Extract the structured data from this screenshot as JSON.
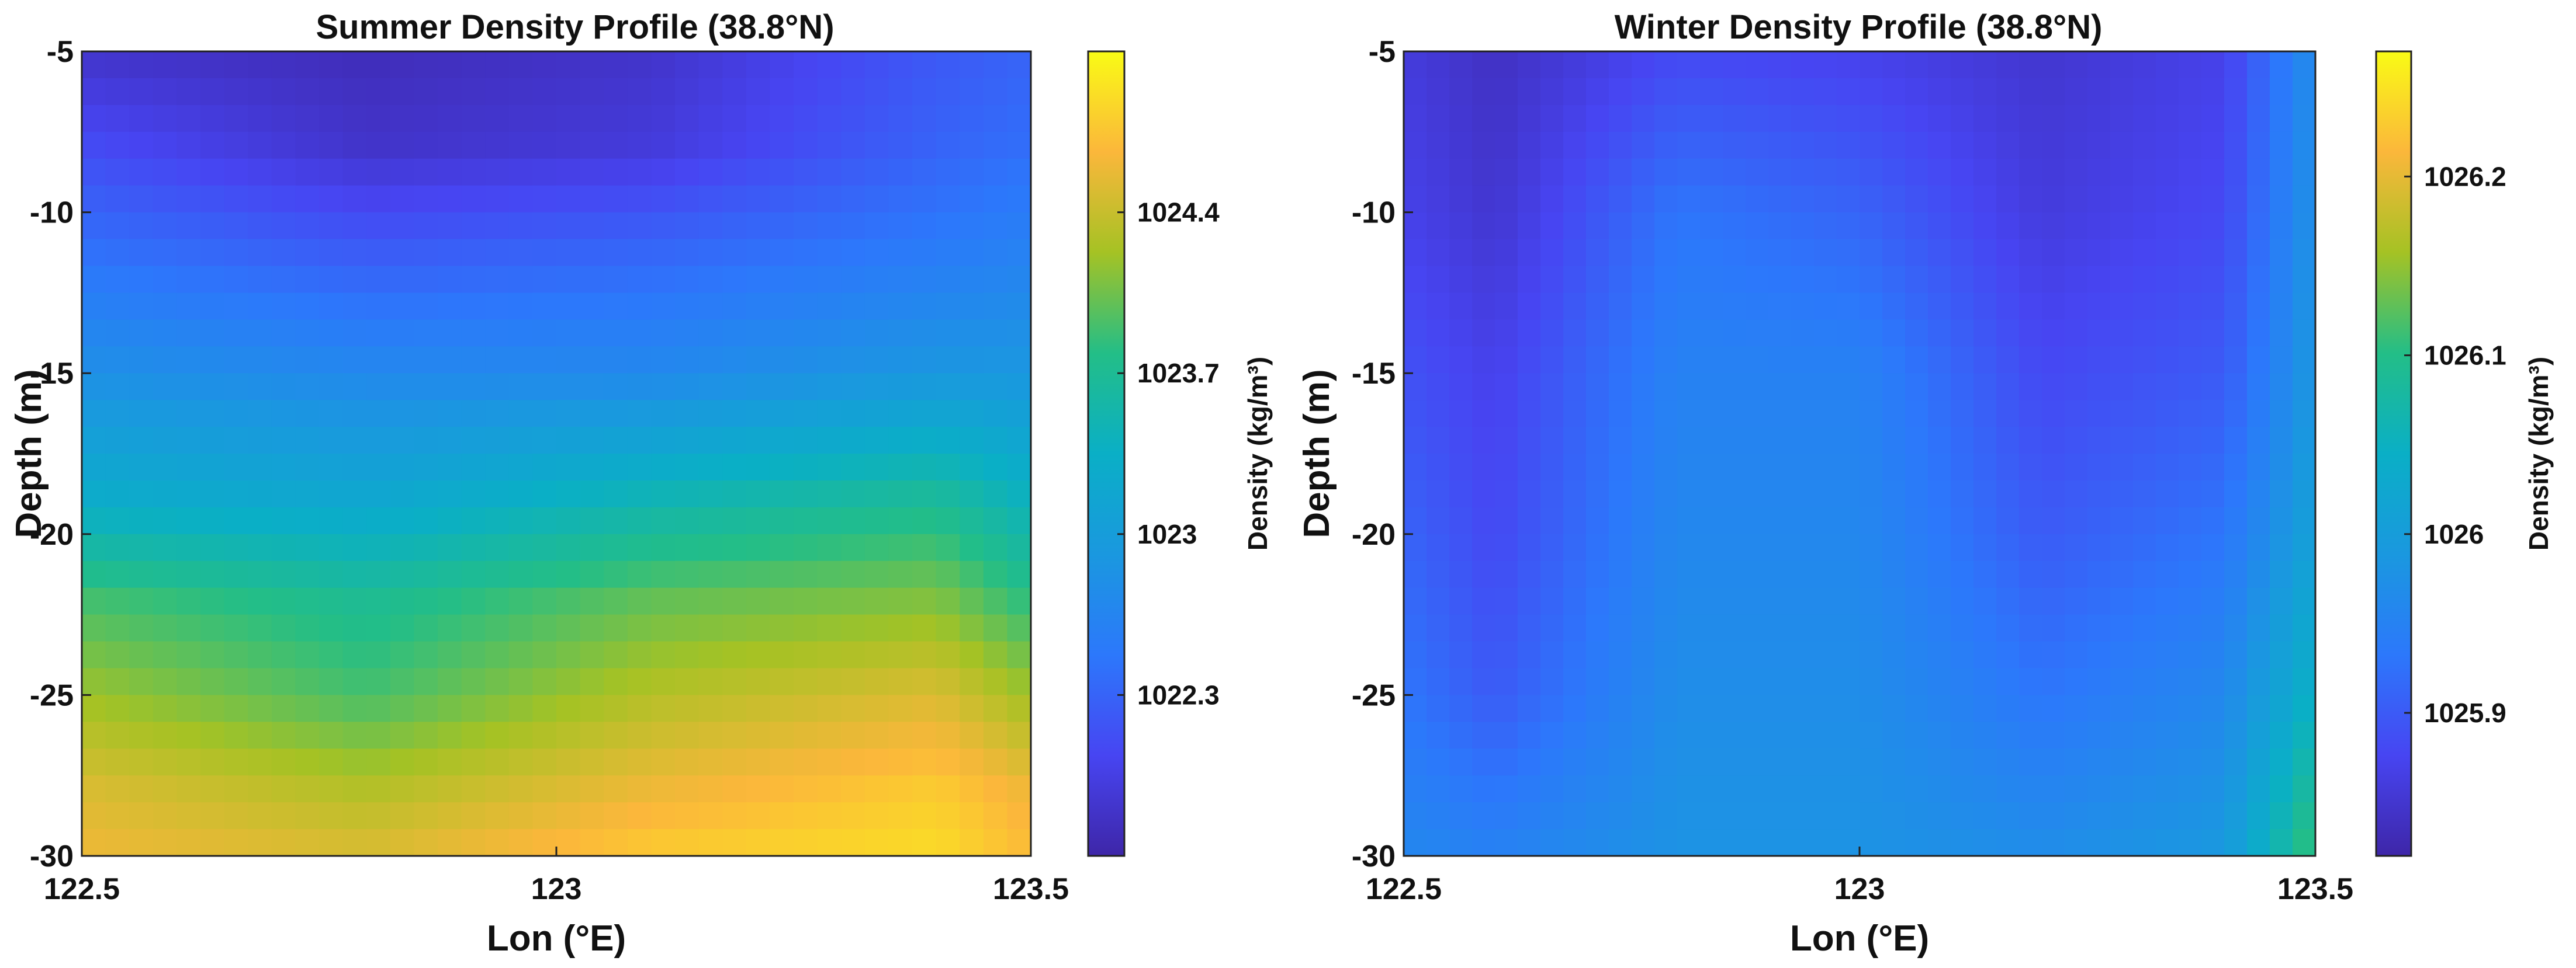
{
  "chart_data": [
    {
      "type": "heatmap",
      "title": "Summer Density Profile (38.8°N)",
      "xlabel": "Lon (°E)",
      "ylabel": "Depth (m)",
      "xlim": [
        122.5,
        123.5
      ],
      "ylim": [
        -30,
        -5
      ],
      "xticks": [
        122.5,
        123,
        123.5
      ],
      "xtick_labels": [
        "122.5",
        "123",
        "123.5"
      ],
      "yticks": [
        -5,
        -10,
        -15,
        -20,
        -25,
        -30
      ],
      "ytick_labels": [
        "-5",
        "-10",
        "-15",
        "-20",
        "-25",
        "-30"
      ],
      "colorbar": {
        "label": "Density (kg/m³)",
        "range": [
          1021.6,
          1025.1
        ],
        "ticks": [
          1022.3,
          1023,
          1023.7,
          1024.4
        ],
        "tick_labels": [
          "1022.3",
          "1023",
          "1023.7",
          "1024.4"
        ]
      },
      "x": [
        122.5,
        122.8,
        123.1,
        123.4,
        123.5
      ],
      "y": [
        -5,
        -8,
        -11,
        -15,
        -19,
        -22,
        -25,
        -28,
        -30
      ],
      "z": [
        [
          1021.8,
          1021.7,
          1021.8,
          1022.2,
          1022.3
        ],
        [
          1022.1,
          1021.8,
          1021.9,
          1022.3,
          1022.4
        ],
        [
          1022.4,
          1022.2,
          1022.3,
          1022.5,
          1022.6
        ],
        [
          1022.8,
          1022.7,
          1022.7,
          1022.9,
          1022.9
        ],
        [
          1023.3,
          1023.2,
          1023.5,
          1023.7,
          1023.4
        ],
        [
          1023.9,
          1023.7,
          1024.0,
          1024.1,
          1023.8
        ],
        [
          1024.2,
          1023.9,
          1024.3,
          1024.5,
          1024.2
        ],
        [
          1024.5,
          1024.3,
          1024.6,
          1024.8,
          1024.6
        ],
        [
          1024.6,
          1024.5,
          1024.8,
          1024.9,
          1024.7
        ]
      ]
    },
    {
      "type": "heatmap",
      "title": "Winter Density Profile (38.8°N)",
      "xlabel": "Lon (°E)",
      "ylabel": "Depth (m)",
      "xlim": [
        122.5,
        123.5
      ],
      "ylim": [
        -30,
        -5
      ],
      "xticks": [
        122.5,
        123,
        123.5
      ],
      "xtick_labels": [
        "122.5",
        "123",
        "123.5"
      ],
      "yticks": [
        -5,
        -10,
        -15,
        -20,
        -25,
        -30
      ],
      "ytick_labels": [
        "-5",
        "-10",
        "-15",
        "-20",
        "-25",
        "-30"
      ],
      "colorbar": {
        "label": "Density (kg/m³)",
        "range": [
          1025.82,
          1026.27
        ],
        "ticks": [
          1025.9,
          1026,
          1026.1,
          1026.2
        ],
        "tick_labels": [
          "1025.9",
          "1026",
          "1026.1",
          "1026.2"
        ]
      },
      "x": [
        122.5,
        122.6,
        122.8,
        123.0,
        123.2,
        123.4,
        123.5
      ],
      "y": [
        -5,
        -10,
        -15,
        -20,
        -25,
        -30
      ],
      "z": [
        [
          1025.86,
          1025.84,
          1025.88,
          1025.87,
          1025.85,
          1025.87,
          1025.97
        ],
        [
          1025.87,
          1025.85,
          1025.93,
          1025.91,
          1025.86,
          1025.88,
          1025.98
        ],
        [
          1025.89,
          1025.87,
          1025.95,
          1025.95,
          1025.88,
          1025.9,
          1025.99
        ],
        [
          1025.91,
          1025.88,
          1025.96,
          1025.96,
          1025.9,
          1025.93,
          1026.01
        ],
        [
          1025.93,
          1025.9,
          1025.97,
          1025.97,
          1025.93,
          1025.96,
          1026.05
        ],
        [
          1025.96,
          1025.95,
          1025.98,
          1025.98,
          1025.97,
          1025.99,
          1026.12
        ]
      ]
    }
  ]
}
